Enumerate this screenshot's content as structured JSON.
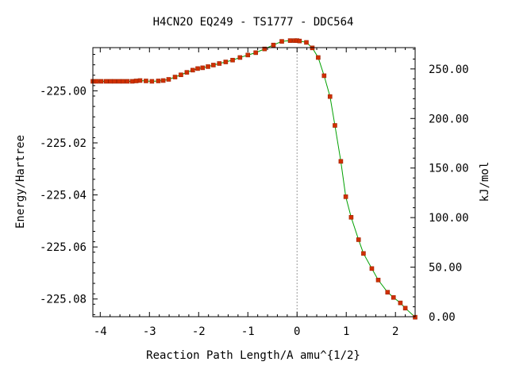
{
  "chart_data": {
    "type": "line",
    "title": "H4CN2O   EQ249 - TS1777 - DDC564",
    "xlabel": "Reaction Path Length/A amu^{1/2}",
    "ylabel": "Energy/Hartree",
    "y2label": "kJ/mol",
    "xlim": [
      -4.15,
      2.4
    ],
    "ylim": [
      -225.0868,
      -224.9834
    ],
    "y2lim": [
      0,
      271.5
    ],
    "x_ticks": [
      "-4",
      "-3",
      "-2",
      "-1",
      "0",
      "1",
      "2"
    ],
    "x_tick_values": [
      -4,
      -3,
      -2,
      -1,
      0,
      1,
      2
    ],
    "y_ticks": [
      "-225.00",
      "-225.02",
      "-225.04",
      "-225.06",
      "-225.08"
    ],
    "y_tick_values": [
      -225.0,
      -225.02,
      -225.04,
      -225.06,
      -225.08
    ],
    "y2_ticks": [
      "0.00",
      "50.00",
      "100.00",
      "150.00",
      "200.00",
      "250.00"
    ],
    "y2_tick_values": [
      0,
      50,
      100,
      150,
      200,
      250
    ],
    "ts_marker_x": 0,
    "grid": false,
    "colors": {
      "line": "#00a000",
      "marker": "#d03000",
      "marker_edge": "#a02000",
      "ts_line": "#999999"
    },
    "series": [
      {
        "x": [
          -4.15,
          -4.07,
          -3.98,
          -3.88,
          -3.79,
          -3.71,
          -3.62,
          -3.54,
          -3.45,
          -3.35,
          -3.27,
          -3.19,
          -3.07,
          -2.95,
          -2.82,
          -2.72,
          -2.61,
          -2.48,
          -2.36,
          -2.24,
          -2.12,
          -2.02,
          -1.92,
          -1.81,
          -1.7,
          -1.58,
          -1.45,
          -1.31,
          -1.16,
          -1.0,
          -0.84,
          -0.66,
          -0.48,
          -0.31,
          -0.14,
          -0.05,
          0.0,
          0.05,
          0.19,
          0.31,
          0.43,
          0.55,
          0.67,
          0.77,
          0.89,
          0.99,
          1.1,
          1.25,
          1.35,
          1.52,
          1.65,
          1.84,
          1.96,
          2.1,
          2.2,
          2.4
        ],
        "y": [
          -224.99635,
          -224.99635,
          -224.99635,
          -224.99635,
          -224.99635,
          -224.99635,
          -224.99635,
          -224.99635,
          -224.99635,
          -224.99635,
          -224.9962,
          -224.99605,
          -224.9962,
          -224.99635,
          -224.9962,
          -224.99605,
          -224.9956,
          -224.9947,
          -224.99385,
          -224.9929,
          -224.99205,
          -224.99145,
          -224.99115,
          -224.9907,
          -224.9901,
          -224.9895,
          -224.9889,
          -224.9882,
          -224.9872,
          -224.98625,
          -224.98535,
          -224.9839,
          -224.9824,
          -224.981,
          -224.9807,
          -224.9807,
          -224.9807,
          -224.98085,
          -224.9814,
          -224.9835,
          -224.9872,
          -224.9942,
          -225.0022,
          -225.0133,
          -225.0271,
          -225.0407,
          -225.0486,
          -225.0572,
          -225.0625,
          -225.0683,
          -225.0727,
          -225.0774,
          -225.0794,
          -225.0815,
          -225.0835,
          -225.087
        ]
      }
    ]
  }
}
